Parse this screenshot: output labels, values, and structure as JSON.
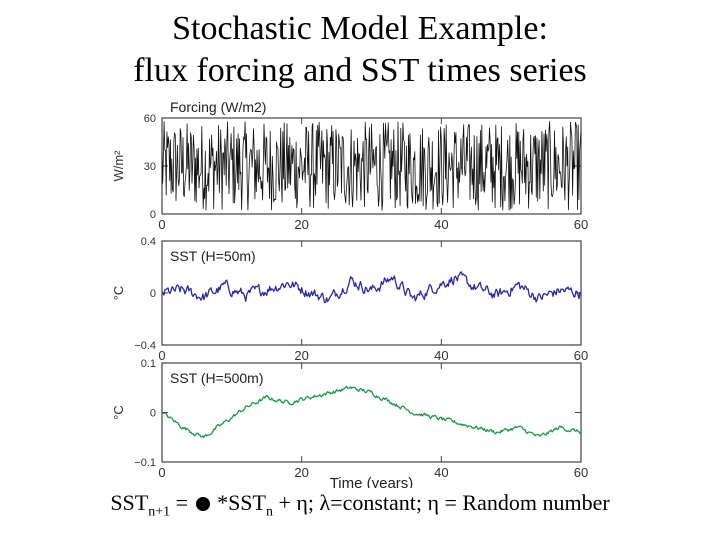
{
  "title_line1": "Stochastic Model Example:",
  "title_line2": "flux forcing and SST times series",
  "formula": {
    "lhs": "SST",
    "lhs_sub": "n+1",
    "eq": " = ",
    "mid": " *SST",
    "mid_sub": "n",
    "rest": " + η; λ=constant; η = Random number"
  },
  "chart_data": [
    {
      "type": "line",
      "title": "Forcing  (W/m2)",
      "ylabel": "W/m²",
      "xlim": [
        0,
        60
      ],
      "ylim": [
        0,
        60
      ],
      "xticks": [
        "0",
        "20",
        "40",
        "60"
      ],
      "yticks": [
        "0",
        "30",
        "60"
      ],
      "color": "#111111",
      "series": [
        {
          "x_range": [
            0,
            60
          ],
          "mean": 30,
          "amplitude": 30,
          "noise": "white",
          "points": 600
        }
      ]
    },
    {
      "type": "line",
      "title": "SST  (H=50m)",
      "ylabel": "°C",
      "xlim": [
        0,
        60
      ],
      "ylim": [
        -0.4,
        0.4
      ],
      "xticks": [
        "0",
        "20",
        "40",
        "60"
      ],
      "yticks": [
        "-0.4",
        "0",
        "0.4"
      ],
      "color": "#2a2aa8",
      "series": [
        {
          "x": [
            0,
            3,
            6,
            9,
            12,
            15,
            18,
            21,
            24,
            27,
            30,
            33,
            36,
            39,
            42,
            45,
            48,
            51,
            54,
            57,
            60
          ],
          "values": [
            0,
            0.02,
            -0.03,
            0.05,
            -0.02,
            0.03,
            0.08,
            0.01,
            -0.05,
            0.1,
            0.02,
            0.12,
            -0.05,
            0.05,
            0.12,
            0.04,
            -0.02,
            0.06,
            -0.04,
            0.02,
            0.0
          ]
        }
      ]
    },
    {
      "type": "line",
      "title": "SST  (H=500m)",
      "ylabel": "°C",
      "xlabel": "Time (years)",
      "xlim": [
        0,
        60
      ],
      "ylim": [
        -0.1,
        0.1
      ],
      "xticks": [
        "0",
        "20",
        "40",
        "60"
      ],
      "yticks": [
        "-0.1",
        "0",
        "0.1"
      ],
      "color": "#1a9a48",
      "series": [
        {
          "x": [
            0,
            3,
            6,
            9,
            12,
            15,
            18,
            21,
            24,
            27,
            30,
            33,
            36,
            39,
            42,
            45,
            48,
            51,
            54,
            57,
            60
          ],
          "values": [
            0.0,
            -0.03,
            -0.05,
            -0.02,
            0.01,
            0.03,
            0.02,
            0.03,
            0.04,
            0.05,
            0.04,
            0.02,
            0.0,
            -0.01,
            -0.02,
            -0.03,
            -0.04,
            -0.03,
            -0.05,
            -0.03,
            -0.04
          ]
        }
      ]
    }
  ]
}
